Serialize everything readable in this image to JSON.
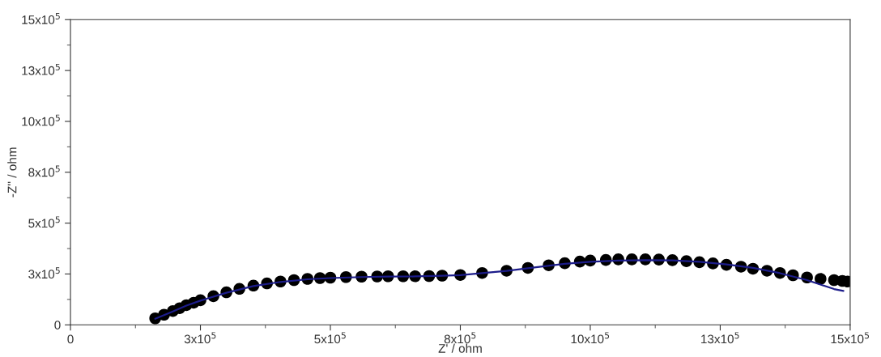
{
  "chart_data": {
    "type": "scatter",
    "xlabel": "Z' / ohm",
    "ylabel": "-Z'' / ohm",
    "xlim": [
      0,
      1500000
    ],
    "ylim": [
      0,
      1500000
    ],
    "xticks": [
      {
        "value": 0,
        "label": "0"
      },
      {
        "value": 250000,
        "label": "3x10$^{5}$"
      },
      {
        "value": 500000,
        "label": "5x10$^{5}$"
      },
      {
        "value": 750000,
        "label": "8x10$^{5}$"
      },
      {
        "value": 1000000,
        "label": "10x10$^{5}$"
      },
      {
        "value": 1250000,
        "label": "13x10$^{5}$"
      },
      {
        "value": 1500000,
        "label": "15x10$^{5}$"
      }
    ],
    "yticks": [
      {
        "value": 0,
        "label": "0"
      },
      {
        "value": 250000,
        "label": "3x10$^{5}$"
      },
      {
        "value": 500000,
        "label": "5x10$^{5}$"
      },
      {
        "value": 750000,
        "label": "8x10$^{5}$"
      },
      {
        "value": 1000000,
        "label": "10x10$^{5}$"
      },
      {
        "value": 1250000,
        "label": "13x10$^{5}$"
      },
      {
        "value": 1500000,
        "label": "15x10$^{5}$"
      }
    ],
    "grid": false,
    "legend": false,
    "series": [
      {
        "marker": "circle",
        "color": "#000000",
        "x": [
          163000,
          180000,
          197000,
          210000,
          223000,
          237000,
          250000,
          275000,
          300000,
          325000,
          352000,
          378000,
          404000,
          430000,
          456000,
          480000,
          500000,
          530000,
          560000,
          590000,
          611000,
          640000,
          663000,
          690000,
          715000,
          750000,
          792000,
          839000,
          880000,
          920000,
          951000,
          980000,
          1000000,
          1030000,
          1054000,
          1080000,
          1106000,
          1132000,
          1158000,
          1185000,
          1210000,
          1236000,
          1262000,
          1290000,
          1313000,
          1340000,
          1365000,
          1390000,
          1417000,
          1443000,
          1469000,
          1485000,
          1495000
        ],
        "values": [
          32000,
          50000,
          68000,
          82000,
          97000,
          109000,
          121000,
          141000,
          160000,
          177000,
          193000,
          204000,
          213000,
          220000,
          226000,
          230000,
          232000,
          235000,
          237000,
          238000,
          239000,
          239000,
          239000,
          240000,
          242000,
          245000,
          255000,
          266000,
          280000,
          293000,
          303000,
          311000,
          316000,
          319000,
          322000,
          322000,
          322000,
          321000,
          318000,
          313000,
          308000,
          302000,
          295000,
          286000,
          276000,
          266000,
          255000,
          244000,
          233000,
          226000,
          220000,
          216000,
          213000
        ]
      },
      {
        "type": "line",
        "marker": "none",
        "line_style": "solid",
        "color": "#1c1c8a",
        "x": [
          163000,
          197000,
          223000,
          250000,
          300000,
          352000,
          404000,
          456000,
          500000,
          560000,
          611000,
          663000,
          715000,
          750000,
          792000,
          839000,
          899000,
          951000,
          1000000,
          1054000,
          1106000,
          1158000,
          1210000,
          1262000,
          1313000,
          1365000,
          1417000,
          1469000,
          1487000
        ],
        "values": [
          30000,
          66000,
          95000,
          119000,
          158000,
          191000,
          211000,
          224000,
          230000,
          235000,
          237000,
          238000,
          241000,
          244000,
          254000,
          265000,
          284000,
          300000,
          310000,
          316000,
          318000,
          317000,
          310000,
          297000,
          280000,
          254000,
          220000,
          176000,
          167000
        ]
      }
    ]
  }
}
